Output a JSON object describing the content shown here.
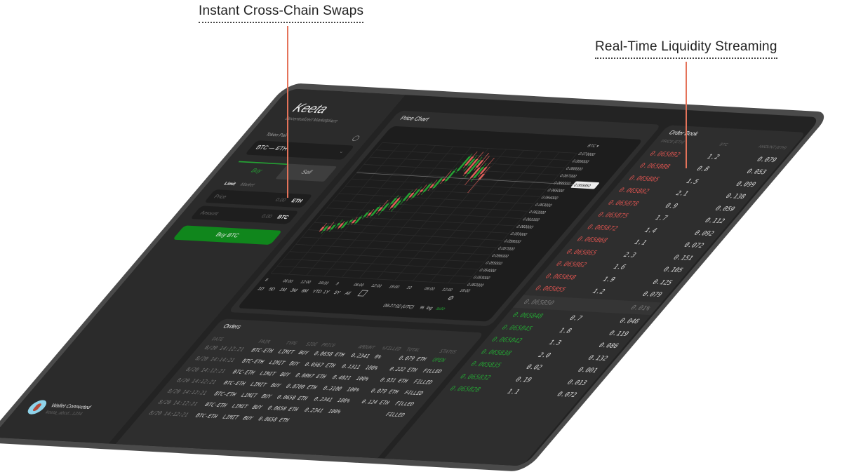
{
  "callouts": {
    "left": "Instant Cross-Chain Swaps",
    "right": "Real-Time Liquidity Streaming"
  },
  "sidebar": {
    "logo": "Keeta",
    "tagline": "Decentralized Marketplace",
    "token_pair_label": "Token Pair",
    "token_pair": "BTC — ETH",
    "tabs": {
      "buy": "Buy",
      "sell": "Sell"
    },
    "order_types": {
      "limit": "Limit",
      "market": "Market"
    },
    "price": {
      "label": "Price",
      "value": "0.00",
      "unit": "ETH"
    },
    "amount": {
      "label": "Amount",
      "value": "0.00",
      "unit": "BTC"
    },
    "buy_button": "Buy BTC",
    "wallet": {
      "status": "Wallet Connected",
      "id": "keeta_abcd...1234"
    }
  },
  "chart": {
    "title": "Price Chart",
    "currency": "BTC ▾",
    "current_price": "0.065850",
    "y_ticks": [
      "0.070000",
      "0.069000",
      "0.068000",
      "0.067000",
      "0.066000",
      "0.065000",
      "0.064000",
      "0.063000",
      "0.062000",
      "0.061000",
      "0.060000",
      "0.059000",
      "0.058000",
      "0.057000",
      "0.056000",
      "0.055000",
      "0.054000",
      "0.053000",
      "0.052000"
    ],
    "x_ticks": [
      "8",
      "06:00",
      "12:00",
      "18:00",
      "9",
      "06:00",
      "12:00",
      "18:00",
      "10",
      "06:00",
      "12:00",
      "18:00"
    ],
    "timeframes": [
      "1D",
      "5D",
      "1M",
      "3M",
      "6M",
      "YTD",
      "1Y",
      "5Y",
      "All"
    ],
    "time": "09:27:02 (UTC)",
    "pct": "%",
    "log": "log",
    "auto": "auto",
    "colors": {
      "up": "#25a234",
      "down": "#e0605a"
    }
  },
  "chart_data": {
    "type": "candlestick",
    "ylim": [
      0.052,
      0.07
    ],
    "candles": [
      [
        0.0585,
        0.059,
        0.0578,
        0.058
      ],
      [
        0.058,
        0.0588,
        0.0576,
        0.0586
      ],
      [
        0.0586,
        0.0592,
        0.058,
        0.0582
      ],
      [
        0.0582,
        0.059,
        0.0579,
        0.0588
      ],
      [
        0.0588,
        0.0596,
        0.0584,
        0.0591
      ],
      [
        0.0591,
        0.0594,
        0.0583,
        0.0585
      ],
      [
        0.0585,
        0.0595,
        0.0583,
        0.0593
      ],
      [
        0.0593,
        0.0598,
        0.0589,
        0.0596
      ],
      [
        0.0596,
        0.06,
        0.059,
        0.0592
      ],
      [
        0.0592,
        0.0603,
        0.059,
        0.0601
      ],
      [
        0.0601,
        0.061,
        0.0598,
        0.0607
      ],
      [
        0.0607,
        0.0612,
        0.06,
        0.0603
      ],
      [
        0.0603,
        0.0618,
        0.0601,
        0.0615
      ],
      [
        0.0615,
        0.0625,
        0.0606,
        0.061
      ],
      [
        0.061,
        0.0622,
        0.0604,
        0.062
      ],
      [
        0.062,
        0.0632,
        0.0615,
        0.0628
      ],
      [
        0.0628,
        0.063,
        0.0612,
        0.0615
      ],
      [
        0.0615,
        0.0628,
        0.061,
        0.0625
      ],
      [
        0.0625,
        0.064,
        0.062,
        0.0636
      ],
      [
        0.0636,
        0.0642,
        0.0625,
        0.063
      ],
      [
        0.063,
        0.0645,
        0.0627,
        0.0641
      ],
      [
        0.0641,
        0.0648,
        0.0633,
        0.0638
      ],
      [
        0.0638,
        0.0652,
        0.0634,
        0.0649
      ],
      [
        0.0649,
        0.0655,
        0.064,
        0.0644
      ],
      [
        0.0644,
        0.066,
        0.0642,
        0.0657
      ],
      [
        0.0657,
        0.0668,
        0.065,
        0.0654
      ],
      [
        0.0654,
        0.0672,
        0.0652,
        0.0668
      ],
      [
        0.0668,
        0.0692,
        0.0665,
        0.0688
      ],
      [
        0.0688,
        0.0695,
        0.0672,
        0.0676
      ],
      [
        0.0676,
        0.069,
        0.0668,
        0.0685
      ],
      [
        0.0685,
        0.0695,
        0.0662,
        0.0665
      ],
      [
        0.0665,
        0.0688,
        0.066,
        0.0684
      ],
      [
        0.0684,
        0.0694,
        0.067,
        0.0674
      ],
      [
        0.0674,
        0.069,
        0.065,
        0.066
      ],
      [
        0.066,
        0.068,
        0.0655,
        0.0675
      ],
      [
        0.0675,
        0.0688,
        0.0662,
        0.0666
      ],
      [
        0.0666,
        0.0676,
        0.064,
        0.0658
      ]
    ]
  },
  "orders": {
    "title": "Orders",
    "columns": [
      "DATE",
      "PAIR",
      "TYPE",
      "SIDE",
      "PRICE",
      "AMOUNT",
      "%FILLED",
      "TOTAL",
      "STATUS"
    ],
    "rows": [
      [
        "8/20 14:12:21",
        "BTC-ETH",
        "LIMIT",
        "BUY",
        "0.0658 ETH",
        "0.2341",
        "0%",
        "0.079 ETH",
        "OPEN"
      ],
      [
        "8/20 14:14:21",
        "BTC-ETH",
        "LIMIT",
        "BUY",
        "0.0567 ETH",
        "0.1311",
        "100%",
        "0.222 ETH",
        "FILLED"
      ],
      [
        "8/20 14:12:21",
        "BTC-ETH",
        "LIMIT",
        "BUY",
        "0.0867 ETH",
        "0.4021",
        "100%",
        "0.931 ETH",
        "FILLED"
      ],
      [
        "8/20 14:12:21",
        "BTC-ETH",
        "LIMIT",
        "BUY",
        "0.0700 ETH",
        "0.3100",
        "100%",
        "0.079 ETH",
        "FILLED"
      ],
      [
        "8/20 14:12:21",
        "BTC-ETH",
        "LIMIT",
        "BUY",
        "0.0658 ETH",
        "0.2341",
        "100%",
        "0.124 ETH",
        "FILLED"
      ],
      [
        "8/20 14:12:21",
        "BTC-ETH",
        "LIMIT",
        "BUY",
        "0.0658 ETH",
        "0.2341",
        "100%",
        "",
        "FILLED"
      ],
      [
        "8/20 14:12:21",
        "BTC-ETH",
        "LIMIT",
        "BUY",
        "0.0658 ETH",
        "",
        "",
        "",
        ""
      ]
    ]
  },
  "orderbook": {
    "title": "Order Book",
    "columns": [
      "PRICE (ETH)",
      "BTC",
      "AMOUNT (ETH)"
    ],
    "asks": [
      [
        "0.065892",
        "1.2",
        "0.079"
      ],
      [
        "0.065888",
        "0.8",
        "0.053"
      ],
      [
        "0.065885",
        "1.5",
        "0.099"
      ],
      [
        "0.065882",
        "2.1",
        "0.138"
      ],
      [
        "0.065878",
        "0.9",
        "0.059"
      ],
      [
        "0.065875",
        "1.7",
        "0.112"
      ],
      [
        "0.065872",
        "1.4",
        "0.092"
      ],
      [
        "0.065868",
        "1.1",
        "0.072"
      ],
      [
        "0.065865",
        "2.3",
        "0.151"
      ],
      [
        "0.065862",
        "1.6",
        "0.105"
      ],
      [
        "0.065858",
        "1.9",
        "0.125"
      ],
      [
        "0.065855",
        "1.2",
        "0.079"
      ]
    ],
    "mid": {
      "price": "0.065850",
      "spread": "0.01%"
    },
    "bids": [
      [
        "0.065848",
        "0.7",
        "0.046"
      ],
      [
        "0.065845",
        "1.8",
        "0.119"
      ],
      [
        "0.065842",
        "1.3",
        "0.086"
      ],
      [
        "0.065838",
        "2.0",
        "0.132"
      ],
      [
        "0.065835",
        "0.02",
        "0.001"
      ],
      [
        "0.065832",
        "0.19",
        "0.013"
      ],
      [
        "0.065828",
        "1.1",
        "0.072"
      ]
    ]
  }
}
